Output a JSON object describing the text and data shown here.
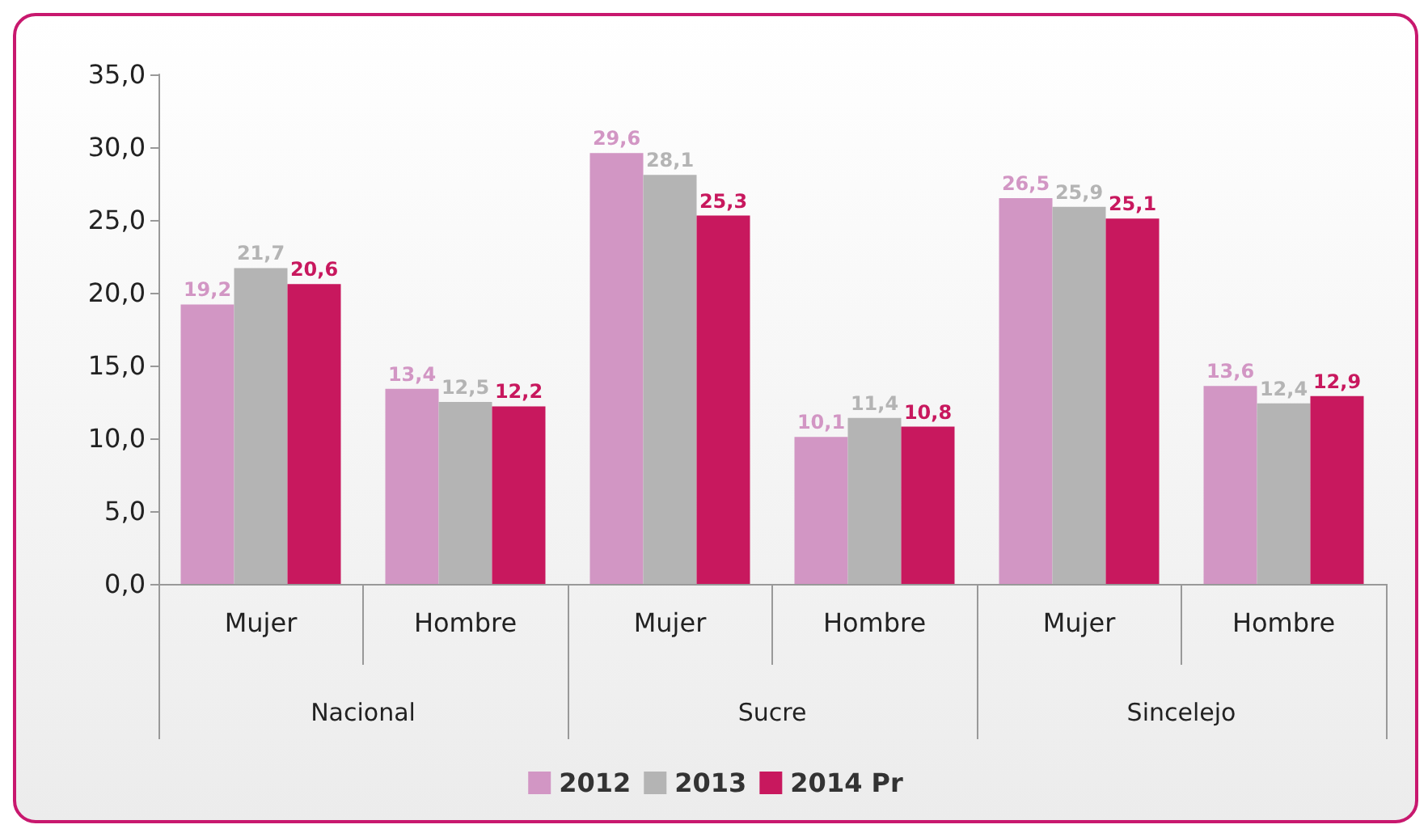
{
  "chart_data": {
    "type": "bar",
    "categories": [
      "Mujer",
      "Hombre",
      "Mujer",
      "Hombre",
      "Mujer",
      "Hombre"
    ],
    "annotations": [
      "Nacional",
      "Sucre",
      "Sincelejo"
    ],
    "series": [
      {
        "name": "2012",
        "color": "#d296c4",
        "values": [
          19.2,
          13.4,
          29.6,
          10.1,
          26.5,
          13.6
        ],
        "value_labels": [
          "19,2",
          "13,4",
          "29,6",
          "10,1",
          "26,5",
          "13,6"
        ]
      },
      {
        "name": "2013",
        "color": "#b4b4b4",
        "values": [
          21.7,
          12.5,
          28.1,
          11.4,
          25.9,
          12.4
        ],
        "value_labels": [
          "21,7",
          "12,5",
          "28,1",
          "11,4",
          "25,9",
          "12,4"
        ]
      },
      {
        "name": "2014 Pr",
        "color": "#c8185e",
        "values": [
          20.6,
          12.2,
          25.3,
          10.8,
          25.1,
          12.9
        ],
        "value_labels": [
          "20,6",
          "12,2",
          "25,3",
          "10,8",
          "25,1",
          "12,9"
        ]
      }
    ],
    "ylim": [
      0,
      35
    ],
    "yticks": [
      {
        "value": 0,
        "label": "0,0"
      },
      {
        "value": 5,
        "label": "5,0"
      },
      {
        "value": 10,
        "label": "10,0"
      },
      {
        "value": 15,
        "label": "15,0"
      },
      {
        "value": 20,
        "label": "20,0"
      },
      {
        "value": 25,
        "label": "25,0"
      },
      {
        "value": 30,
        "label": "30,0"
      },
      {
        "value": 35,
        "label": "35,0"
      }
    ],
    "grid": false,
    "legend": "bottom"
  }
}
